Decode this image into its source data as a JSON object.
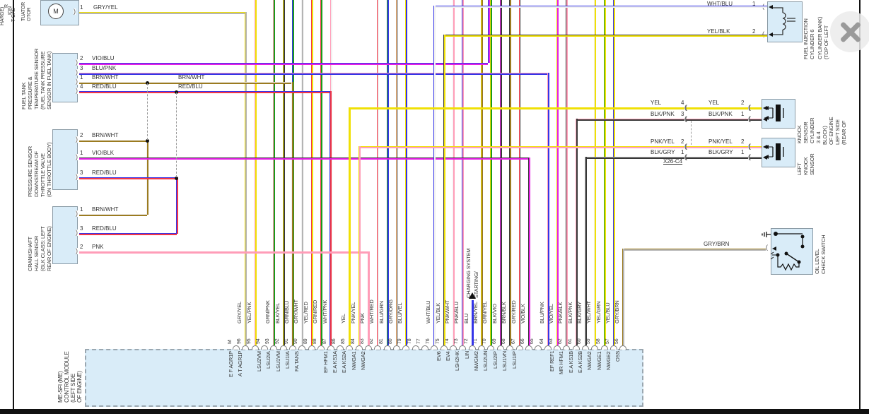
{
  "colors": {
    "YEL": "#f0e005",
    "GRY": "#b4b4b4",
    "VIO": "#e520e5",
    "BLU": "#3535e8",
    "PNK": "#ff9db8",
    "BRN": "#9b7b20",
    "RED": "#f23545",
    "GRN": "#1a9a1a",
    "BLK": "#383838",
    "WHT": "#f0f0f0",
    "ORG": "#d89858"
  },
  "left_margin_fragments": [
    "HARGE)",
    "R",
    "ION",
    "T GAS"
  ],
  "actuator_motor": {
    "label_fragments": [
      "TUATOR",
      "OTOR"
    ],
    "motor_letter": "M",
    "pin": {
      "n": "1",
      "wire": "GRY/YEL"
    }
  },
  "fuel_tank_sensor": {
    "label_lines": [
      "FUEL TANK",
      "PRESSURE &",
      "TEMPERATURE SENSOR",
      "(FUEL TANK PRESSURE",
      "SENSOR IN FUEL TANK)"
    ],
    "pins": [
      {
        "n": "2",
        "wire": "VIO/BLU"
      },
      {
        "n": "3",
        "wire": "BLU/PNK"
      },
      {
        "n": "1",
        "wire": "BRN/WHT",
        "wire2": "BRN/WHT"
      },
      {
        "n": "4",
        "wire": "RED/BLU",
        "wire2": "RED/BLU"
      }
    ]
  },
  "pressure_sensor": {
    "label_lines": [
      "PRESSURE SENSOR",
      "DOWNSTREAM OF",
      "THROTTLE VALVE",
      "(ON THROTTLE BODY)"
    ],
    "pins": [
      {
        "n": "2",
        "wire": "BRN/WHT"
      },
      {
        "n": "1",
        "wire": "VIO/BLK"
      },
      {
        "n": "3",
        "wire": "RED/BLU"
      }
    ]
  },
  "crankshaft_sensor": {
    "label_lines": [
      "CRANKSHAFT",
      "HALL SENSOR",
      "(GLK CLASS: LEFT",
      "REAR OF ENGINE)"
    ],
    "pins": [
      {
        "n": "1",
        "wire": "BRN/WHT"
      },
      {
        "n": "3",
        "wire": "RED/BLU"
      },
      {
        "n": "2",
        "wire": "PNK"
      }
    ]
  },
  "fuel_injector": {
    "name_lines": [
      "FUEL INJECTION",
      "CYLINDER 6"
    ],
    "location_lines": [
      "(TOP OF LEFT",
      "CYLINDER BANK)"
    ],
    "pins": [
      {
        "n": "1",
        "wire": "WHT/BLU"
      },
      {
        "n": "2",
        "wire": "YEL/BLK"
      }
    ]
  },
  "knock_sensor_1": {
    "name_lines": [
      "KNOCK",
      "SENSOR",
      "CYLINDER",
      "3 & 4"
    ],
    "location_lines": [
      "(REAR OF",
      "LEFT SIDE",
      "OF ENGINE",
      "BLOCK)"
    ],
    "rows": [
      {
        "left_wire": "YEL",
        "left_n": "4",
        "right_wire": "YEL",
        "right_n": "2"
      },
      {
        "left_wire": "BLK/PNK",
        "left_n": "3",
        "right_wire": "BLK/PNK",
        "right_n": "1"
      }
    ]
  },
  "knock_sensor_2": {
    "name_lines": [
      "LEFT",
      "KNOCK",
      "SENSOR"
    ],
    "rows": [
      {
        "left_wire": "PNK/YEL",
        "left_n": "2",
        "right_wire": "PNK/YEL",
        "right_n": "2"
      },
      {
        "left_wire": "BLK/GRY",
        "left_n": "1",
        "right_wire": "BLK/GRY",
        "right_n": "1"
      }
    ]
  },
  "connector_label": "X26-C4",
  "oil_level_switch": {
    "name_lines": [
      "OIL LEVEL",
      "CHECK SWITCH"
    ],
    "wire": "GRY/BRN"
  },
  "system_link": {
    "lines": [
      "STARTING/",
      "CHARGING SYSTEM"
    ]
  },
  "module": {
    "name_lines": [
      "ME-SFI (ME)",
      "CONTROL MODULE",
      "(LEFT SIDE",
      "OF ENGINE)"
    ],
    "pins": [
      {
        "id": "M",
        "wire": "",
        "signal": "E F AGR1P"
      },
      {
        "id": "96",
        "wire": "GRY/YEL",
        "signal": "A T AGR1P"
      },
      {
        "id": "95",
        "wire": "YEL/PNK",
        "signal": ""
      },
      {
        "id": "94",
        "wire": "",
        "signal": "LSU2VM"
      },
      {
        "id": "93",
        "wire": "GRN/PNK",
        "signal": "LSU2IA"
      },
      {
        "id": "92",
        "wire": "BLK/YEL",
        "signal": "LSU1VM"
      },
      {
        "id": "91",
        "wire": "GRN/BLU",
        "signal": "LSU1IA"
      },
      {
        "id": "90",
        "wire": "GRY/WHT",
        "signal": "FA TANS"
      },
      {
        "id": "89",
        "wire": "YEL/RED",
        "signal": ""
      },
      {
        "id": "88",
        "wire": "GRN/RED",
        "signal": ""
      },
      {
        "id": "87",
        "wire": "WHT/PNK",
        "signal": "EF HFM1"
      },
      {
        "id": "86",
        "wire": "",
        "signal": "E A KS1A"
      },
      {
        "id": "85",
        "wire": "YEL",
        "signal": "E A KS2A"
      },
      {
        "id": "84",
        "wire": "PNK/YEL",
        "signal": "NWGA1"
      },
      {
        "id": "83",
        "wire": "PNK",
        "signal": "NWGA2"
      },
      {
        "id": "82",
        "wire": "WHT/RED",
        "signal": ""
      },
      {
        "id": "81",
        "wire": "BLU/GRN",
        "signal": ""
      },
      {
        "id": "80",
        "wire": "GRY/ORG",
        "signal": ""
      },
      {
        "id": "79",
        "wire": "BLU/YEL",
        "signal": ""
      },
      {
        "id": "78",
        "wire": "",
        "signal": ""
      },
      {
        "id": "77",
        "wire": "",
        "signal": ""
      },
      {
        "id": "76",
        "wire": "WHT/BLU",
        "signal": ""
      },
      {
        "id": "75",
        "wire": "YEL/BLK",
        "signal": "EV6"
      },
      {
        "id": "74",
        "wire": "PNK/WHT",
        "signal": "EV4"
      },
      {
        "id": "73",
        "wire": "PNK/BLU",
        "signal": "LSH2HK"
      },
      {
        "id": "72",
        "wire": "BLU",
        "signal": "LIN"
      },
      {
        "id": "71",
        "wire": "BRN/YEL",
        "signal": "NWGM2"
      },
      {
        "id": "70",
        "wire": "GRN/YEL",
        "signal": "LSU2UN"
      },
      {
        "id": "69",
        "wire": "BLK/VIO",
        "signal": "LSU2IP"
      },
      {
        "id": "68",
        "wire": "BRN/BLK",
        "signal": "LSU1VN"
      },
      {
        "id": "67",
        "wire": "GRY/RED",
        "signal": "LSU1IP"
      },
      {
        "id": "66",
        "wire": "VIO/BLK",
        "signal": ""
      },
      {
        "id": "65",
        "wire": "",
        "signal": ""
      },
      {
        "id": "64",
        "wire": "BLU/PNK",
        "signal": ""
      },
      {
        "id": "63",
        "wire": "VIO/YEL",
        "signal": "EF REF1"
      },
      {
        "id": "62",
        "wire": "PNK/BLK",
        "signal": "MR HFM1"
      },
      {
        "id": "61",
        "wire": "BLK/PNK",
        "signal": "E A KS1B"
      },
      {
        "id": "60",
        "wire": "BLK/GRY",
        "signal": "E A KS2B"
      },
      {
        "id": "59",
        "wire": "YEL/WHT",
        "signal": "NWGA2"
      },
      {
        "id": "58",
        "wire": "YEL/GRN",
        "signal": "NWGE1"
      },
      {
        "id": "57",
        "wire": "YEL/BLU",
        "signal": "NWGE2"
      },
      {
        "id": "56",
        "wire": "GRY/BRN",
        "signal": "OSS"
      }
    ]
  }
}
